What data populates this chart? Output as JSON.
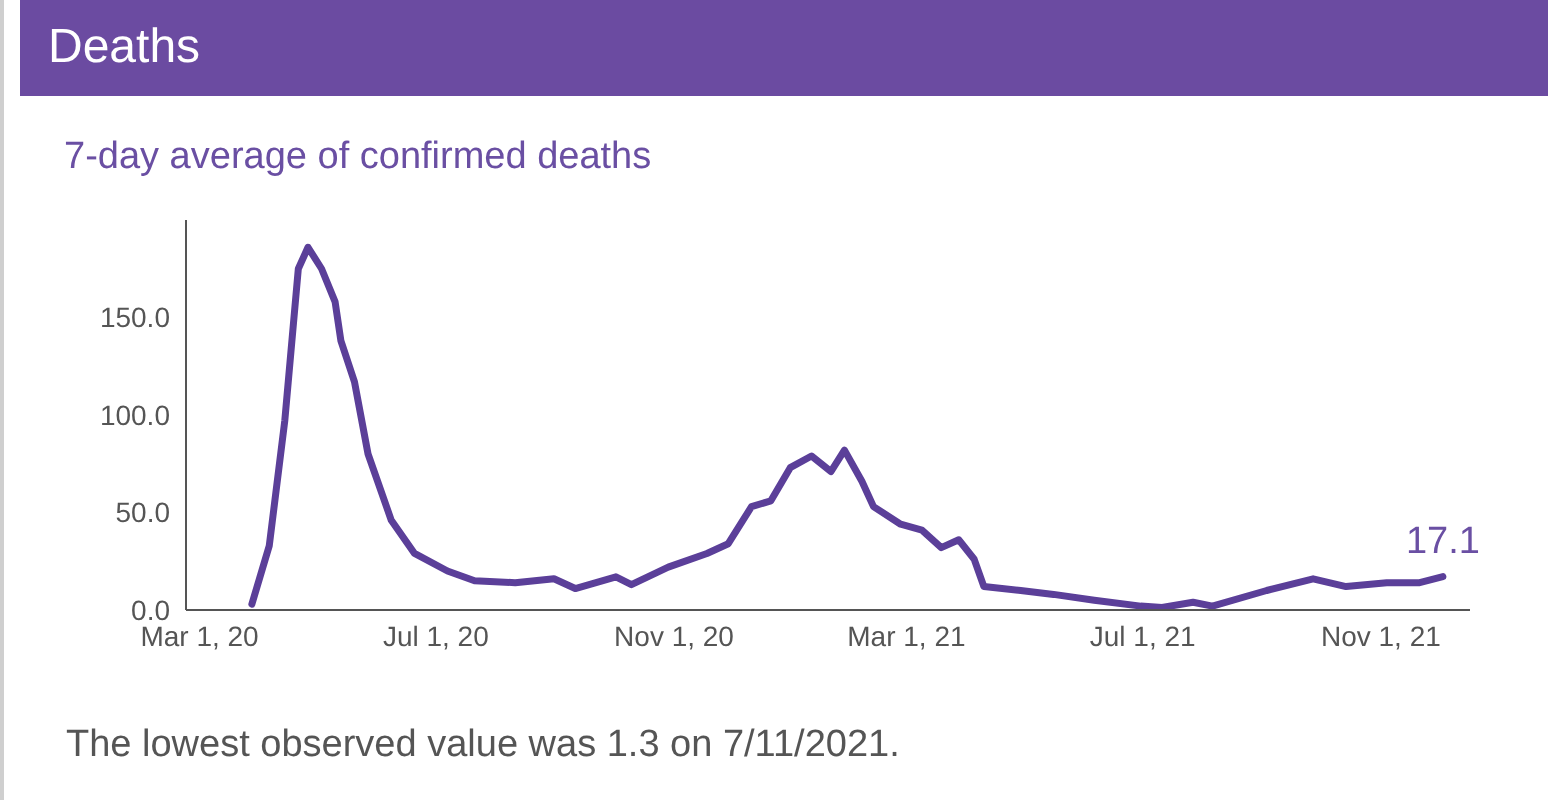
{
  "chart_data": {
    "type": "line",
    "title": "Deaths",
    "subtitle": "7-day average of confirmed deaths",
    "x": [
      "2020-03-28",
      "2020-04-06",
      "2020-04-14",
      "2020-04-21",
      "2020-04-26",
      "2020-05-03",
      "2020-05-10",
      "2020-05-13",
      "2020-05-20",
      "2020-05-27",
      "2020-06-08",
      "2020-06-20",
      "2020-07-07",
      "2020-07-21",
      "2020-08-11",
      "2020-08-31",
      "2020-09-11",
      "2020-10-02",
      "2020-10-10",
      "2020-10-29",
      "2020-11-18",
      "2020-11-29",
      "2020-12-11",
      "2020-12-21",
      "2020-12-31",
      "2021-01-11",
      "2021-01-21",
      "2021-01-28",
      "2021-02-06",
      "2021-02-12",
      "2021-02-26",
      "2021-03-09",
      "2021-03-19",
      "2021-03-28",
      "2021-04-05",
      "2021-04-10",
      "2021-04-29",
      "2021-05-16",
      "2021-06-06",
      "2021-06-30",
      "2021-07-11",
      "2021-07-27",
      "2021-08-06",
      "2021-09-03",
      "2021-09-27",
      "2021-10-14",
      "2021-11-04",
      "2021-11-21",
      "2021-12-03"
    ],
    "series": [
      {
        "color": "#5b3f99",
        "values": [
          3,
          33,
          97,
          175,
          186,
          175,
          158,
          138,
          117,
          80,
          46,
          29,
          20,
          15,
          14,
          16,
          11,
          17,
          13,
          22,
          29,
          34,
          53,
          56,
          73,
          79,
          71,
          82,
          66,
          53,
          44,
          41,
          32,
          36,
          26,
          12,
          10,
          8,
          5,
          2,
          1.3,
          4,
          2,
          10,
          16,
          12,
          14,
          14,
          17.1
        ]
      }
    ],
    "xlim": [
      "2020-02-23",
      "2021-12-17"
    ],
    "xticks": [
      {
        "value": "2020-03-01",
        "label": "Mar 1, 20"
      },
      {
        "value": "2020-07-01",
        "label": "Jul 1, 20"
      },
      {
        "value": "2020-11-01",
        "label": "Nov 1, 20"
      },
      {
        "value": "2021-03-01",
        "label": "Mar 1, 21"
      },
      {
        "value": "2021-07-01",
        "label": "Jul 1, 21"
      },
      {
        "value": "2021-11-01",
        "label": "Nov 1, 21"
      }
    ],
    "ylim": [
      0,
      200
    ],
    "yticks": [
      {
        "value": 0,
        "label": "0.0"
      },
      {
        "value": 50,
        "label": "50.0"
      },
      {
        "value": 100,
        "label": "100.0"
      },
      {
        "value": 150,
        "label": "150.0"
      }
    ],
    "grid": false,
    "legend": false,
    "marker": "none",
    "line_style": "solid",
    "annotations": [
      {
        "text": "17.1",
        "x": "2021-12-03",
        "y": 17.1
      },
      "The lowest observed value was 1.3 on 7/11/2021."
    ]
  }
}
